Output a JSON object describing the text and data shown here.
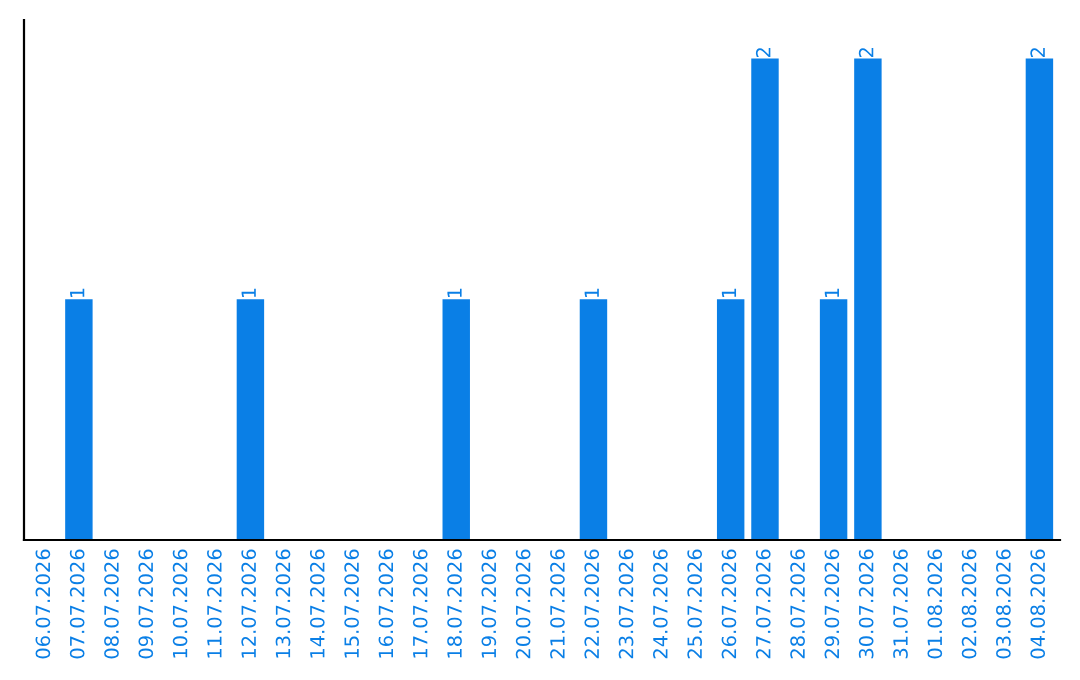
{
  "chart_data": {
    "type": "bar",
    "categories": [
      "06.07.2026",
      "07.07.2026",
      "08.07.2026",
      "09.07.2026",
      "10.07.2026",
      "11.07.2026",
      "12.07.2026",
      "13.07.2026",
      "14.07.2026",
      "15.07.2026",
      "16.07.2026",
      "17.07.2026",
      "18.07.2026",
      "19.07.2026",
      "20.07.2026",
      "21.07.2026",
      "22.07.2026",
      "23.07.2026",
      "24.07.2026",
      "25.07.2026",
      "26.07.2026",
      "27.07.2026",
      "28.07.2026",
      "29.07.2026",
      "30.07.2026",
      "31.07.2026",
      "01.08.2026",
      "02.08.2026",
      "03.08.2026",
      "04.08.2026"
    ],
    "values": [
      0,
      1,
      0,
      0,
      0,
      0,
      1,
      0,
      0,
      0,
      0,
      0,
      1,
      0,
      0,
      0,
      1,
      0,
      0,
      0,
      1,
      2,
      0,
      1,
      2,
      0,
      0,
      0,
      0,
      2
    ],
    "value_labels": [
      null,
      "1",
      null,
      null,
      null,
      null,
      "1",
      null,
      null,
      null,
      null,
      null,
      "1",
      null,
      null,
      null,
      "1",
      null,
      null,
      null,
      "1",
      "2",
      null,
      "1",
      "2",
      null,
      null,
      null,
      null,
      "2"
    ],
    "color": "#0a7fe6",
    "tick_labels": "x",
    "grid": false,
    "legend": false
  }
}
